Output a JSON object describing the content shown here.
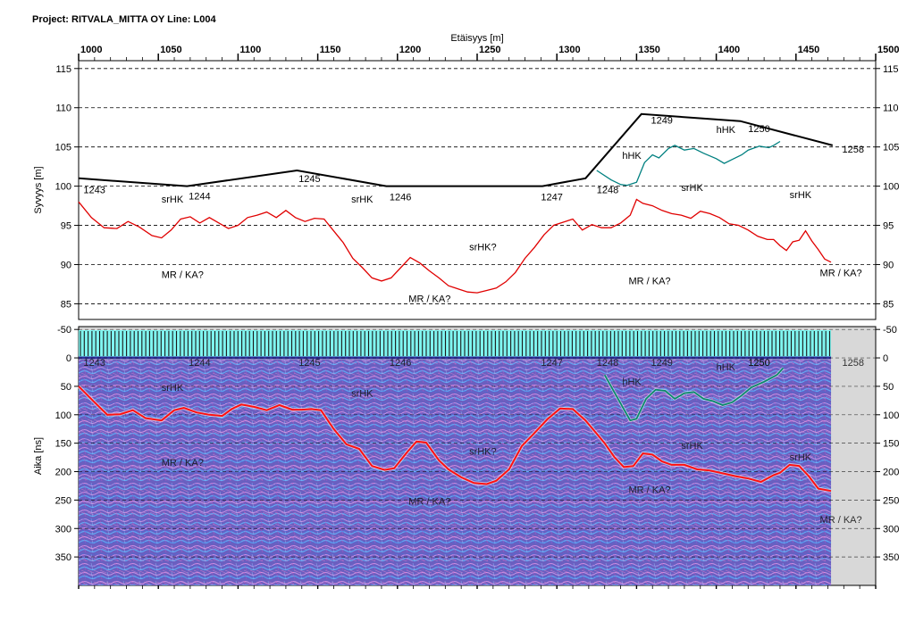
{
  "header": {
    "project": "Project: RITVALA_MITTA OY  Line: L004"
  },
  "chart_data": [
    {
      "type": "line",
      "xlabel": "Etäisyys [m]",
      "ylabel": "Syvyys [m]",
      "xlim": [
        1000,
        1500
      ],
      "ylim": [
        83,
        116
      ],
      "x_ticks": [
        "1000",
        "1050",
        "1100",
        "1150",
        "1200",
        "1250",
        "1300",
        "1350",
        "1400",
        "1450",
        "1500"
      ],
      "y_ticks": [
        "115",
        "110",
        "105",
        "100",
        "95",
        "90",
        "85"
      ],
      "grid": true,
      "series": [
        {
          "color": "#000000",
          "points": [
            [
              1000,
              101
            ],
            [
              1068,
              100
            ],
            [
              1137,
              102
            ],
            [
              1193,
              100
            ],
            [
              1291,
              100
            ],
            [
              1318,
              101
            ],
            [
              1353,
              109.2
            ],
            [
              1415,
              108.3
            ],
            [
              1473,
              105.2
            ]
          ]
        },
        {
          "color": "#008080",
          "points": [
            [
              1325,
              102
            ],
            [
              1334,
              100.8
            ],
            [
              1340,
              100.2
            ],
            [
              1344,
              100.1
            ],
            [
              1350,
              100.5
            ],
            [
              1355,
              103
            ],
            [
              1360,
              104
            ],
            [
              1364,
              103.6
            ],
            [
              1370,
              104.8
            ],
            [
              1374,
              105.2
            ],
            [
              1380,
              104.6
            ],
            [
              1386,
              104.8
            ],
            [
              1392,
              104.2
            ],
            [
              1400,
              103.5
            ],
            [
              1405,
              102.9
            ],
            [
              1410,
              103.4
            ],
            [
              1416,
              104
            ],
            [
              1420,
              104.6
            ],
            [
              1427,
              105.1
            ],
            [
              1433,
              104.9
            ],
            [
              1436,
              105.2
            ],
            [
              1440,
              105.7
            ]
          ]
        },
        {
          "color": "#e00000",
          "points": [
            [
              1000,
              98
            ],
            [
              1008,
              96
            ],
            [
              1016,
              94.7
            ],
            [
              1024,
              94.6
            ],
            [
              1031,
              95.5
            ],
            [
              1038,
              94.8
            ],
            [
              1046,
              93.7
            ],
            [
              1052,
              93.4
            ],
            [
              1058,
              94.4
            ],
            [
              1064,
              95.8
            ],
            [
              1070,
              96.1
            ],
            [
              1076,
              95.3
            ],
            [
              1082,
              96
            ],
            [
              1088,
              95.3
            ],
            [
              1094,
              94.6
            ],
            [
              1100,
              95
            ],
            [
              1106,
              96
            ],
            [
              1112,
              96.3
            ],
            [
              1118,
              96.7
            ],
            [
              1124,
              96
            ],
            [
              1130,
              96.9
            ],
            [
              1136,
              96
            ],
            [
              1142,
              95.5
            ],
            [
              1148,
              95.9
            ],
            [
              1154,
              95.8
            ],
            [
              1160,
              94.3
            ],
            [
              1166,
              92.8
            ],
            [
              1172,
              90.8
            ],
            [
              1178,
              89.6
            ],
            [
              1184,
              88.3
            ],
            [
              1190,
              87.9
            ],
            [
              1196,
              88.3
            ],
            [
              1202,
              89.6
            ],
            [
              1208,
              90.9
            ],
            [
              1214,
              90.2
            ],
            [
              1220,
              89.2
            ],
            [
              1226,
              88.3
            ],
            [
              1232,
              87.3
            ],
            [
              1238,
              86.9
            ],
            [
              1244,
              86.5
            ],
            [
              1250,
              86.4
            ],
            [
              1256,
              86.7
            ],
            [
              1262,
              87
            ],
            [
              1268,
              87.8
            ],
            [
              1274,
              89
            ],
            [
              1280,
              90.8
            ],
            [
              1286,
              92.2
            ],
            [
              1292,
              93.8
            ],
            [
              1298,
              95
            ],
            [
              1304,
              95.4
            ],
            [
              1310,
              95.8
            ],
            [
              1316,
              94.4
            ],
            [
              1322,
              95.1
            ],
            [
              1328,
              94.7
            ],
            [
              1334,
              94.7
            ],
            [
              1340,
              95.3
            ],
            [
              1346,
              96.3
            ],
            [
              1350,
              98.3
            ],
            [
              1354,
              97.8
            ],
            [
              1360,
              97.5
            ],
            [
              1366,
              96.9
            ],
            [
              1372,
              96.5
            ],
            [
              1378,
              96.3
            ],
            [
              1384,
              95.9
            ],
            [
              1390,
              96.8
            ],
            [
              1396,
              96.5
            ],
            [
              1402,
              96
            ],
            [
              1408,
              95.2
            ],
            [
              1414,
              95
            ],
            [
              1420,
              94.4
            ],
            [
              1426,
              93.6
            ],
            [
              1432,
              93.2
            ],
            [
              1436,
              93.2
            ],
            [
              1440,
              92.4
            ],
            [
              1444,
              91.8
            ],
            [
              1448,
              92.9
            ],
            [
              1452,
              93.1
            ],
            [
              1456,
              94.3
            ],
            [
              1460,
              93
            ],
            [
              1464,
              91.9
            ],
            [
              1468,
              90.7
            ],
            [
              1472,
              90.3
            ]
          ]
        }
      ],
      "annotations": [
        {
          "text": "1243",
          "x": 1003,
          "y": 99.1
        },
        {
          "text": "1244",
          "x": 1069,
          "y": 98.3
        },
        {
          "text": "1245",
          "x": 1138,
          "y": 100.5
        },
        {
          "text": "1246",
          "x": 1195,
          "y": 98.2
        },
        {
          "text": "1247",
          "x": 1290,
          "y": 98.2
        },
        {
          "text": "1248",
          "x": 1325,
          "y": 99.1
        },
        {
          "text": "1249",
          "x": 1359,
          "y": 108
        },
        {
          "text": "1250",
          "x": 1420,
          "y": 106.9
        },
        {
          "text": "1258",
          "x": 1479,
          "y": 104.3
        },
        {
          "text": "srHK",
          "x": 1052,
          "y": 97.9
        },
        {
          "text": "srHK",
          "x": 1171,
          "y": 97.9
        },
        {
          "text": "srHK",
          "x": 1378,
          "y": 99.4
        },
        {
          "text": "srHK",
          "x": 1446,
          "y": 98.5
        },
        {
          "text": "srHK?",
          "x": 1245,
          "y": 91.8
        },
        {
          "text": "hHK",
          "x": 1341,
          "y": 103.5
        },
        {
          "text": "hHK",
          "x": 1400,
          "y": 106.8
        },
        {
          "text": "MR / KA?",
          "x": 1052,
          "y": 88.3
        },
        {
          "text": "MR / KA?",
          "x": 1207,
          "y": 85.2
        },
        {
          "text": "MR / KA?",
          "x": 1345,
          "y": 87.5
        },
        {
          "text": "MR / KA?",
          "x": 1465,
          "y": 88.5
        }
      ]
    },
    {
      "type": "heatmap",
      "ylabel": "Aika [ns]",
      "xlim": [
        1000,
        1500
      ],
      "ylim": [
        -55,
        400
      ],
      "y_ticks": [
        "-50",
        "0",
        "50",
        "100",
        "150",
        "200",
        "250",
        "300",
        "350"
      ],
      "data_extent_x": 1472,
      "grid": true,
      "colors": {
        "trace_bar": "#7ff5f0",
        "radar_bg": "#6a5fc0",
        "no_data": "#d8d8d8",
        "red_line": "#ff1010",
        "green_line": "#0a8a6a"
      },
      "red_horizon": [
        [
          1000,
          50
        ],
        [
          1010,
          78
        ],
        [
          1018,
          100
        ],
        [
          1026,
          99
        ],
        [
          1034,
          92
        ],
        [
          1042,
          106
        ],
        [
          1052,
          110
        ],
        [
          1060,
          92
        ],
        [
          1066,
          88
        ],
        [
          1074,
          96
        ],
        [
          1082,
          100
        ],
        [
          1090,
          102
        ],
        [
          1096,
          90
        ],
        [
          1102,
          82
        ],
        [
          1110,
          86
        ],
        [
          1118,
          92
        ],
        [
          1126,
          83
        ],
        [
          1134,
          91
        ],
        [
          1140,
          91
        ],
        [
          1146,
          90
        ],
        [
          1152,
          92
        ],
        [
          1160,
          125
        ],
        [
          1168,
          152
        ],
        [
          1176,
          160
        ],
        [
          1184,
          190
        ],
        [
          1192,
          197
        ],
        [
          1198,
          194
        ],
        [
          1206,
          166
        ],
        [
          1212,
          147
        ],
        [
          1218,
          149
        ],
        [
          1226,
          180
        ],
        [
          1232,
          196
        ],
        [
          1240,
          210
        ],
        [
          1248,
          220
        ],
        [
          1256,
          222
        ],
        [
          1262,
          216
        ],
        [
          1270,
          196
        ],
        [
          1278,
          155
        ],
        [
          1286,
          132
        ],
        [
          1294,
          108
        ],
        [
          1302,
          89
        ],
        [
          1310,
          90
        ],
        [
          1318,
          110
        ],
        [
          1324,
          130
        ],
        [
          1330,
          150
        ],
        [
          1336,
          174
        ],
        [
          1342,
          192
        ],
        [
          1348,
          190
        ],
        [
          1354,
          168
        ],
        [
          1360,
          170
        ],
        [
          1366,
          182
        ],
        [
          1372,
          188
        ],
        [
          1380,
          188
        ],
        [
          1388,
          196
        ],
        [
          1396,
          198
        ],
        [
          1404,
          203
        ],
        [
          1412,
          208
        ],
        [
          1420,
          212
        ],
        [
          1428,
          218
        ],
        [
          1436,
          206
        ],
        [
          1440,
          202
        ],
        [
          1446,
          188
        ],
        [
          1452,
          190
        ],
        [
          1458,
          208
        ],
        [
          1464,
          230
        ],
        [
          1472,
          234
        ]
      ],
      "green_horizon": [
        [
          1330,
          30
        ],
        [
          1336,
          60
        ],
        [
          1342,
          90
        ],
        [
          1346,
          110
        ],
        [
          1350,
          107
        ],
        [
          1356,
          72
        ],
        [
          1362,
          56
        ],
        [
          1368,
          58
        ],
        [
          1374,
          72
        ],
        [
          1380,
          62
        ],
        [
          1386,
          60
        ],
        [
          1392,
          72
        ],
        [
          1398,
          76
        ],
        [
          1404,
          83
        ],
        [
          1410,
          78
        ],
        [
          1416,
          66
        ],
        [
          1422,
          52
        ],
        [
          1430,
          42
        ],
        [
          1438,
          30
        ],
        [
          1442,
          18
        ]
      ],
      "annotations": [
        {
          "text": "1243",
          "x": 1003,
          "y": 14
        },
        {
          "text": "1244",
          "x": 1069,
          "y": 14
        },
        {
          "text": "1245",
          "x": 1138,
          "y": 14
        },
        {
          "text": "1246",
          "x": 1195,
          "y": 14
        },
        {
          "text": "1247",
          "x": 1290,
          "y": 14
        },
        {
          "text": "1248",
          "x": 1325,
          "y": 14
        },
        {
          "text": "1249",
          "x": 1359,
          "y": 14
        },
        {
          "text": "1250",
          "x": 1420,
          "y": 14
        },
        {
          "text": "1258",
          "x": 1479,
          "y": 14
        },
        {
          "text": "srHK",
          "x": 1052,
          "y": 58
        },
        {
          "text": "srHK",
          "x": 1171,
          "y": 68
        },
        {
          "text": "srHK",
          "x": 1378,
          "y": 160
        },
        {
          "text": "srHK",
          "x": 1446,
          "y": 180
        },
        {
          "text": "srHK?",
          "x": 1245,
          "y": 170
        },
        {
          "text": "hHK",
          "x": 1341,
          "y": 48
        },
        {
          "text": "hHK",
          "x": 1400,
          "y": 22
        },
        {
          "text": "1250",
          "x": 1420,
          "y": 14
        },
        {
          "text": "MR / KA?",
          "x": 1052,
          "y": 190
        },
        {
          "text": "MR / KA?",
          "x": 1207,
          "y": 258
        },
        {
          "text": "MR / KA?",
          "x": 1345,
          "y": 238
        },
        {
          "text": "MR / KA?",
          "x": 1465,
          "y": 290
        }
      ]
    }
  ]
}
